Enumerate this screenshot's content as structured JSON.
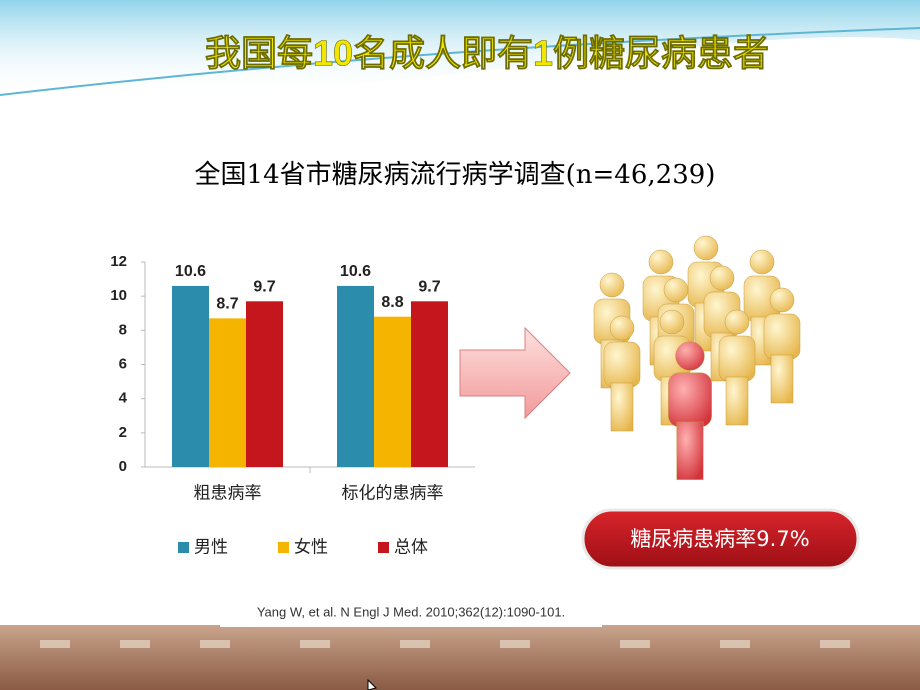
{
  "slide_title": "我国每10名成人即有1例糖尿病患者",
  "badge": "糖尿病患病率9.7%",
  "citation": "Yang W, et al. N Engl J Med. 2010;362(12):1090-101.",
  "chart_data": {
    "type": "bar",
    "title": "全国14省市糖尿病流行病学调查(n=46,239)",
    "categories": [
      "粗患病率",
      "标化的患病率"
    ],
    "series": [
      {
        "name": "男性",
        "color": "#2b8cab",
        "values": [
          10.6,
          10.6
        ]
      },
      {
        "name": "女性",
        "color": "#f5b400",
        "values": [
          8.7,
          8.8
        ]
      },
      {
        "name": "总体",
        "color": "#c4161c",
        "values": [
          9.7,
          9.7
        ]
      }
    ],
    "ylim": [
      0,
      12
    ],
    "yticks": [
      0,
      2,
      4,
      6,
      8,
      10,
      12
    ],
    "grid": false,
    "legend": "bottom"
  }
}
